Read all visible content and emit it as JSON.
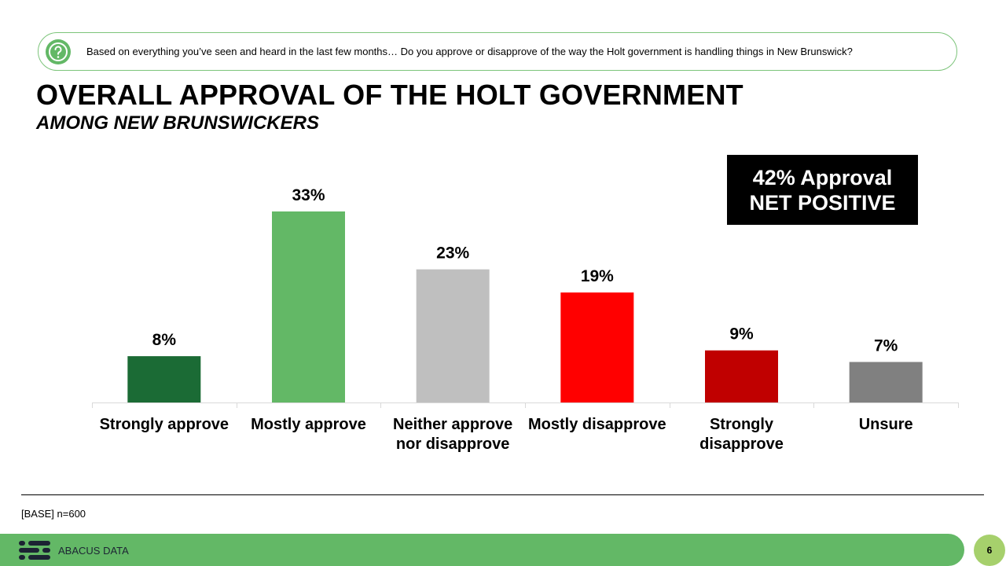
{
  "question": {
    "text": "Based on everything you’ve seen and heard in the last few months… Do you approve or disapprove of the way the Holt government is handling things in New Brunswick?"
  },
  "title": "OVERALL APPROVAL OF THE HOLT GOVERNMENT",
  "subtitle": "AMONG NEW BRUNSWICKERS",
  "net_box": {
    "line1": "42% Approval",
    "line2": "NET POSITIVE"
  },
  "chart_data": {
    "type": "bar",
    "categories": [
      [
        "Strongly approve"
      ],
      [
        "Mostly approve"
      ],
      [
        "Neither approve",
        "nor disapprove"
      ],
      [
        "Mostly disapprove"
      ],
      [
        "Strongly",
        "disapprove"
      ],
      [
        "Unsure"
      ]
    ],
    "values": [
      8,
      33,
      23,
      19,
      9,
      7
    ],
    "value_labels": [
      "8%",
      "33%",
      "23%",
      "19%",
      "9%",
      "7%"
    ],
    "colors": [
      "#1b6b35",
      "#63b866",
      "#bfbfbf",
      "#ff0000",
      "#c00000",
      "#808080"
    ],
    "ylim": [
      0,
      33
    ],
    "grid": false,
    "legend": "none"
  },
  "footer": {
    "base": "[BASE] n=600",
    "brand": "ABACUS DATA",
    "page": "6"
  },
  "colors": {
    "accent": "#63b866",
    "page_circle": "#a6d06c"
  }
}
